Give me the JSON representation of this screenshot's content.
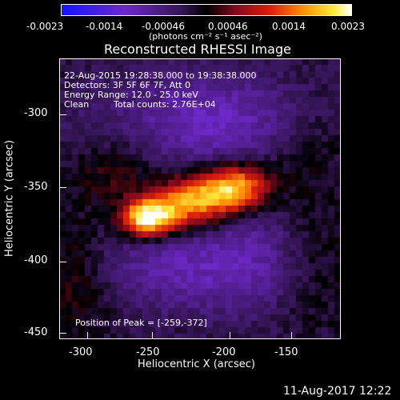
{
  "colorbar": {
    "ticks": [
      "-0.0023",
      "-0.0014",
      "-0.00046",
      "0.00046",
      "0.0014",
      "0.0023"
    ],
    "unit_label": "(photons cm⁻² s⁻¹ asec⁻²)"
  },
  "plot": {
    "title": "Reconstructed RHESSI Image",
    "info": {
      "time_range": "22-Aug-2015 19:28:38.000 to 19:38:38.000",
      "detectors": "Detectors: 3F 5F 6F 7F, Att 0",
      "energy_range": "Energy Range: 12.0 - 25.0 keV",
      "algorithm": "Clean",
      "total_counts": "Total counts: 2.76E+04"
    },
    "peak_label": "Position of Peak = [-259,-372]",
    "x_axis": {
      "label": "Heliocentric X (arcsec)",
      "ticks": [
        "-300",
        "-250",
        "-200",
        "-150"
      ]
    },
    "y_axis": {
      "label": "Heliocentric Y (arcsec)",
      "ticks": [
        "-300",
        "-350",
        "-400",
        "-450"
      ]
    }
  },
  "footer": {
    "timestamp": "11-Aug-2017 12:22"
  }
}
